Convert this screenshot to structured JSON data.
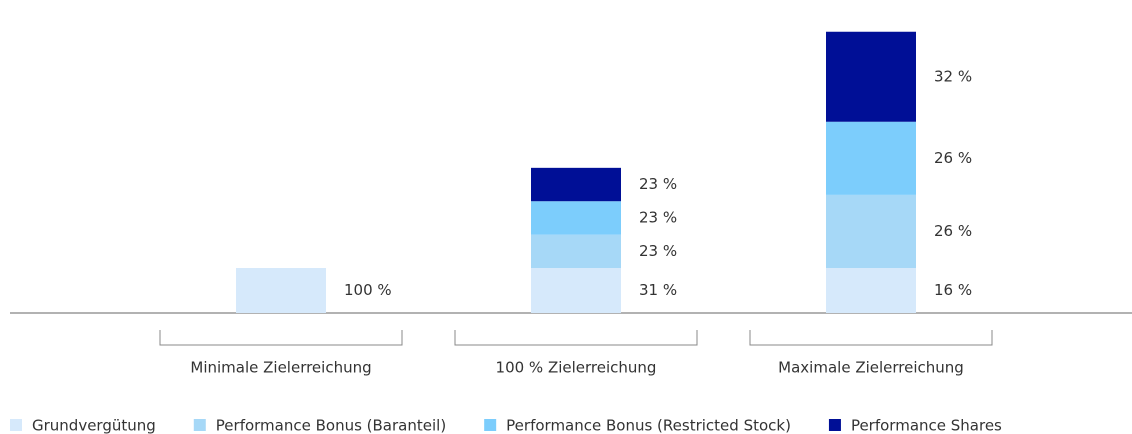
{
  "chart_data": {
    "type": "stacked-bar",
    "categories": [
      "Minimale Zielerreichung",
      "100 % Zielerreichung",
      "Maximale Zielerreichung"
    ],
    "series": [
      {
        "name": "Grundvergütung",
        "color": "#d6e9fb",
        "values": [
          100,
          31,
          16
        ],
        "value_labels": [
          "100 %",
          "31 %",
          "16 %"
        ]
      },
      {
        "name": "Performance Bonus (Baranteil)",
        "color": "#a6d8f7",
        "values": [
          null,
          23,
          26
        ],
        "value_labels": [
          null,
          "23 %",
          "26 %"
        ]
      },
      {
        "name": "Performance Bonus (Restricted Stock)",
        "color": "#7ccdfc",
        "values": [
          null,
          23,
          26
        ],
        "value_labels": [
          null,
          "23 %",
          "26 %"
        ]
      },
      {
        "name": "Performance Shares",
        "color": "#000f96",
        "values": [
          null,
          23,
          32
        ],
        "value_labels": [
          null,
          "23 %",
          "32 %"
        ]
      }
    ]
  }
}
